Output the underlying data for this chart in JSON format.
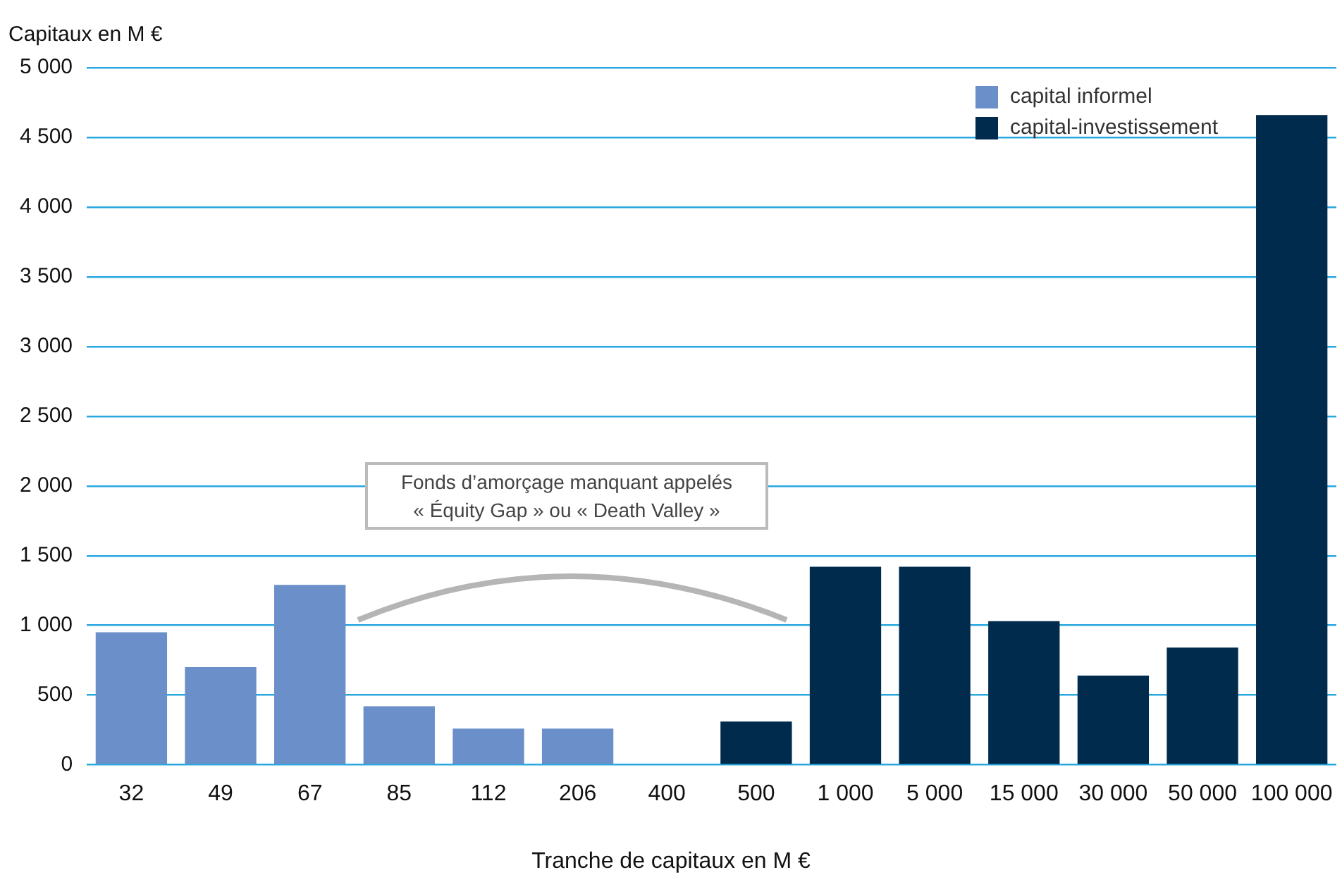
{
  "chart_data": {
    "type": "bar",
    "ylabel": "Capitaux en M €",
    "xlabel": "Tranche de capitaux en M €",
    "categories": [
      "32",
      "49",
      "67",
      "85",
      "112",
      "206",
      "400",
      "500",
      "1 000",
      "5 000",
      "15 000",
      "30 000",
      "50 000",
      "100 000"
    ],
    "series": [
      {
        "name": "capital informel",
        "color": "#6a8fc9",
        "values": [
          950,
          700,
          1290,
          420,
          260,
          260,
          0,
          null,
          null,
          null,
          null,
          null,
          null,
          null
        ]
      },
      {
        "name": "capital-investissement",
        "color": "#002b4d",
        "values": [
          null,
          null,
          null,
          null,
          null,
          null,
          null,
          310,
          1420,
          1420,
          1030,
          640,
          840,
          4660
        ]
      }
    ],
    "ylim": [
      0,
      5000
    ],
    "yticks": [
      {
        "value": 0,
        "label": "0"
      },
      {
        "value": 500,
        "label": "500"
      },
      {
        "value": 1000,
        "label": "1 000"
      },
      {
        "value": 1500,
        "label": "1 500"
      },
      {
        "value": 2000,
        "label": "2 000"
      },
      {
        "value": 2500,
        "label": "2 500"
      },
      {
        "value": 3000,
        "label": "3 000"
      },
      {
        "value": 3500,
        "label": "3 500"
      },
      {
        "value": 4000,
        "label": "4 000"
      },
      {
        "value": 4500,
        "label": "4 500"
      },
      {
        "value": 5000,
        "label": "5 000"
      }
    ],
    "grid": "y",
    "legend": "top right",
    "annotations": [
      "Fonds d’amorçage manquant appelés « Équity Gap » ou « Death Valley »"
    ]
  }
}
